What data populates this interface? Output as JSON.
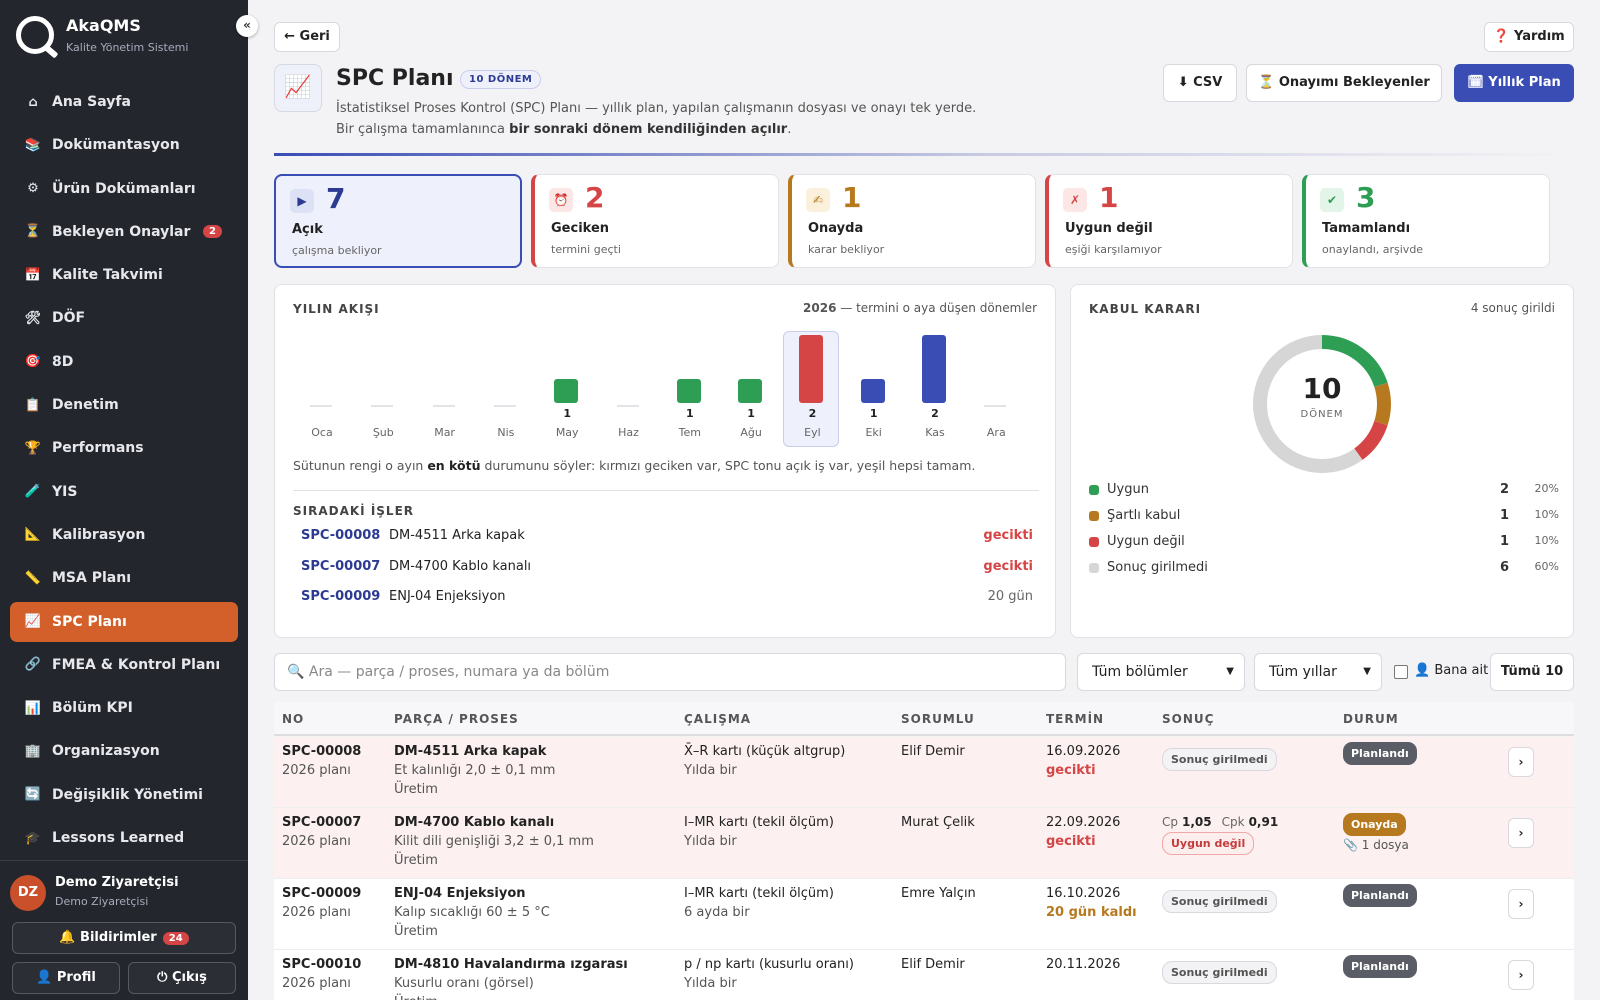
{
  "app": {
    "name": "AkaQMS",
    "subtitle": "Kalite Yönetim Sistemi",
    "collapse_icon": "«"
  },
  "nav": [
    {
      "icon": "⌂",
      "label": "Ana Sayfa"
    },
    {
      "icon": "📚",
      "label": "Dokümantasyon"
    },
    {
      "icon": "⚙",
      "label": "Ürün Dokümanları"
    },
    {
      "icon": "⏳",
      "label": "Bekleyen Onaylar",
      "badge": "2"
    },
    {
      "icon": "📅",
      "label": "Kalite Takvimi"
    },
    {
      "icon": "🛠",
      "label": "DÖF"
    },
    {
      "icon": "🎯",
      "label": "8D"
    },
    {
      "icon": "📋",
      "label": "Denetim"
    },
    {
      "icon": "🏆",
      "label": "Performans"
    },
    {
      "icon": "🧪",
      "label": "YIS"
    },
    {
      "icon": "📐",
      "label": "Kalibrasyon"
    },
    {
      "icon": "📏",
      "label": "MSA Planı"
    },
    {
      "icon": "📈",
      "label": "SPC Planı"
    },
    {
      "icon": "🔗",
      "label": "FMEA & Kontrol Planı"
    },
    {
      "icon": "📊",
      "label": "Bölüm KPI"
    },
    {
      "icon": "🏢",
      "label": "Organizasyon"
    },
    {
      "icon": "🔄",
      "label": "Değişiklik Yönetimi"
    },
    {
      "icon": "🎓",
      "label": "Lessons Learned"
    }
  ],
  "user": {
    "initials": "DZ",
    "name": "Demo Ziyaretçisi",
    "role": "Demo Ziyaretçisi",
    "notifications_label": "🔔 Bildirimler",
    "notifications_count": "24",
    "profile_label": "👤 Profil",
    "logout_label": "⏻ Çıkış"
  },
  "header": {
    "back_label": "← Geri",
    "help_label": "❓ Yardım",
    "icon": "📈",
    "title": "SPC Planı",
    "badge": "10 DÖNEM",
    "desc1": "İstatistiksel Proses Kontrol (SPC) Planı — yıllık plan, yapılan çalışmanın dosyası ve onayı tek yerde.",
    "desc2_pre": "Bir çalışma tamamlanınca ",
    "desc2_bold": "bir sonraki dönem kendiliğinden açılır",
    "desc2_post": ".",
    "csv_label": "⬇ CSV",
    "pending_label": "⏳ Onayımı Bekleyenler",
    "annual_label": "🗓 Yıllık Plan"
  },
  "cards": [
    {
      "icon": "▶",
      "num": "7",
      "label": "Açık",
      "sub": "çalışma bekliyor",
      "color": "#2c3b91"
    },
    {
      "icon": "⏰",
      "num": "2",
      "label": "Geciken",
      "sub": "termini geçti",
      "color": "#d64545"
    },
    {
      "icon": "✍",
      "num": "1",
      "label": "Onayda",
      "sub": "karar bekliyor",
      "color": "#b7791f"
    },
    {
      "icon": "✗",
      "num": "1",
      "label": "Uygun değil",
      "sub": "eşiği karşılamıyor",
      "color": "#d64545"
    },
    {
      "icon": "✔",
      "num": "3",
      "label": "Tamamlandı",
      "sub": "onaylandı, arşivde",
      "color": "#2f9e55"
    }
  ],
  "flow": {
    "title": "YILIN AKIŞI",
    "year": "2026",
    "year_suffix": " — termini o aya düşen dönemler",
    "note_pre": "Sütunun rengi o ayın ",
    "note_bold": "en kötü",
    "note_post": " durumunu söyler: kırmızı geciken var, SPC tonu açık iş var, yeşil hepsi tamam.",
    "queue_title": "SIRADAKİ İŞLER",
    "queue": [
      {
        "no": "SPC-00008",
        "name": "DM-4511 Arka kapak",
        "status": "gecikti",
        "late": true
      },
      {
        "no": "SPC-00007",
        "name": "DM-4700 Kablo kanalı",
        "status": "gecikti",
        "late": true
      },
      {
        "no": "SPC-00009",
        "name": "ENJ-04 Enjeksiyon",
        "status": "20 gün",
        "late": false
      }
    ]
  },
  "chart_data": {
    "type": "bar",
    "categories": [
      "Oca",
      "Şub",
      "Mar",
      "Nis",
      "May",
      "Haz",
      "Tem",
      "Ağu",
      "Eyl",
      "Eki",
      "Kas",
      "Ara"
    ],
    "values": [
      0,
      0,
      0,
      0,
      1,
      0,
      1,
      1,
      2,
      1,
      2,
      0
    ],
    "bar_colors": [
      "",
      "",
      "",
      "",
      "#2f9e55",
      "",
      "#2f9e55",
      "#2f9e55",
      "#d64545",
      "#3a4db5",
      "#3a4db5",
      ""
    ],
    "highlight": "Eyl",
    "ylim": [
      0,
      2
    ]
  },
  "decision": {
    "title": "KABUL KARARI",
    "right": "4 sonuç girildi",
    "center_num": "10",
    "center_label": "DÖNEM",
    "items": [
      {
        "label": "Uygun",
        "count": 2,
        "pct": "20%",
        "color": "#2f9e55"
      },
      {
        "label": "Şartlı kabul",
        "count": 1,
        "pct": "10%",
        "color": "#b7791f"
      },
      {
        "label": "Uygun değil",
        "count": 1,
        "pct": "10%",
        "color": "#d64545"
      },
      {
        "label": "Sonuç girilmedi",
        "count": 6,
        "pct": "60%",
        "color": "#d6d6d6"
      }
    ]
  },
  "filters": {
    "search_placeholder": "🔍 Ara — parça / proses, numara ya da bölüm",
    "dept": "Tüm bölümler",
    "year": "Tüm yıllar",
    "mine": "👤 Bana ait",
    "all_label": "Tümü",
    "all_count": "10"
  },
  "table": {
    "headers": [
      "NO",
      "PARÇA / PROSES",
      "ÇALIŞMA",
      "SORUMLU",
      "TERMİN",
      "SONUÇ",
      "DURUM"
    ],
    "rows": [
      {
        "no": "SPC-00008",
        "plan": "2026 planı",
        "part": "DM-4511 Arka kapak",
        "spec": "Et kalınlığı 2,0 ± 0,1 mm",
        "dept": "Üretim",
        "study": "X̄–R kartı (küçük altgrup)",
        "freq": "Yılda bir",
        "owner": "Elif Demir",
        "due": "16.09.2026",
        "due_note": "gecikti",
        "due_color": "#d64545",
        "result": "Sonuç girilmedi",
        "status": "Planlandı",
        "status_color": "#5a5d66",
        "files": "",
        "late": true
      },
      {
        "no": "SPC-00007",
        "plan": "2026 planı",
        "part": "DM-4700 Kablo kanalı",
        "spec": "Kilit dili genişliği 3,2 ± 0,1 mm",
        "dept": "Üretim",
        "study": "I–MR kartı (tekil ölçüm)",
        "freq": "Yılda bir",
        "owner": "Murat Çelik",
        "due": "22.09.2026",
        "due_note": "gecikti",
        "due_color": "#d64545",
        "cp_label": "Cp",
        "cp": "1,05",
        "cpk_label": "Cpk",
        "cpk": "0,91",
        "result": "Uygun değil",
        "status": "Onayda",
        "status_color": "#b7791f",
        "files": "📎 1 dosya",
        "late": true
      },
      {
        "no": "SPC-00009",
        "plan": "2026 planı",
        "part": "ENJ-04 Enjeksiyon",
        "spec": "Kalıp sıcaklığı 60 ± 5 °C",
        "dept": "Üretim",
        "study": "I–MR kartı (tekil ölçüm)",
        "freq": "6 ayda bir",
        "owner": "Emre Yalçın",
        "due": "16.10.2026",
        "due_note": "20 gün kaldı",
        "due_color": "#b7791f",
        "result": "Sonuç girilmedi",
        "status": "Planlandı",
        "status_color": "#5a5d66",
        "files": "",
        "late": false
      },
      {
        "no": "SPC-00010",
        "plan": "2026 planı",
        "part": "DM-4810 Havalandırma ızgarası",
        "spec": "Kusurlu oranı (görsel)",
        "dept": "Üretim",
        "study": "p / np kartı (kusurlu oranı)",
        "freq": "Yılda bir",
        "owner": "Elif Demir",
        "due": "20.11.2026",
        "due_note": "",
        "due_color": "#222",
        "result": "Sonuç girilmedi",
        "status": "Planlandı",
        "status_color": "#5a5d66",
        "files": "",
        "late": false
      }
    ]
  }
}
